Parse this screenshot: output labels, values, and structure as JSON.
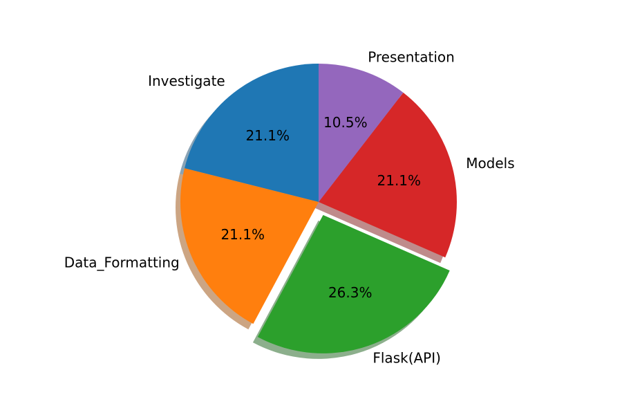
{
  "chart_data": {
    "type": "pie",
    "title": "",
    "start_angle_deg": 90,
    "direction": "counterclockwise",
    "shadow": true,
    "exploded_slice": "Flask(API)",
    "slices": [
      {
        "label": "Investigate",
        "value": 21.1,
        "pct_text": "21.1%",
        "color": "#1f77b4"
      },
      {
        "label": "Data_Formatting",
        "value": 21.1,
        "pct_text": "21.1%",
        "color": "#ff7f0e"
      },
      {
        "label": "Flask(API)",
        "value": 26.3,
        "pct_text": "26.3%",
        "color": "#2ca02c"
      },
      {
        "label": "Models",
        "value": 21.1,
        "pct_text": "21.1%",
        "color": "#d62728"
      },
      {
        "label": "Presentation",
        "value": 10.5,
        "pct_text": "10.5%",
        "color": "#9467bd"
      }
    ]
  }
}
